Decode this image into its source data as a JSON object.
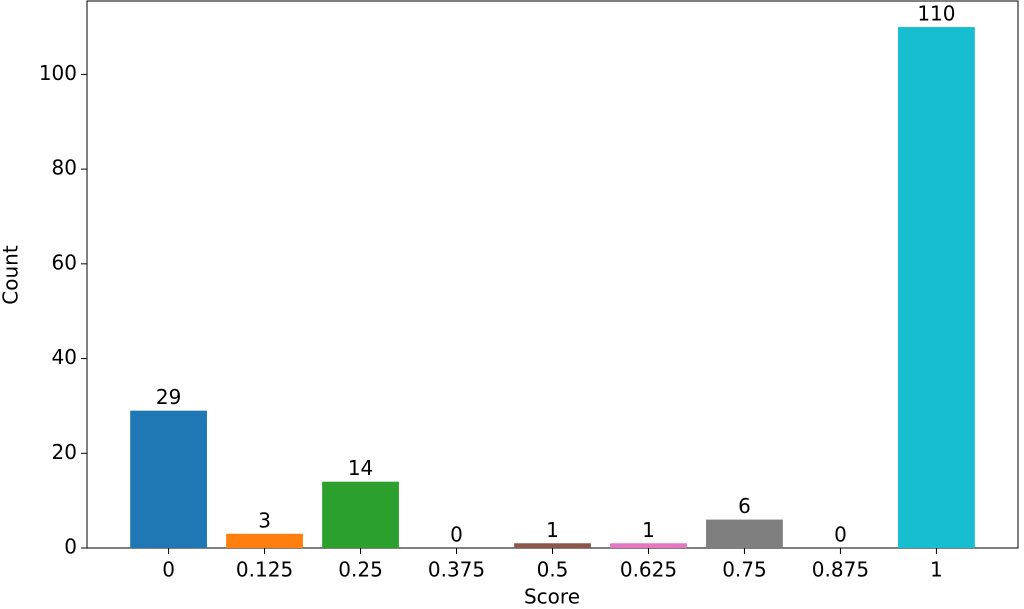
{
  "chart_data": {
    "type": "bar",
    "xlabel": "Score",
    "ylabel": "Count",
    "categories": [
      "0",
      "0.125",
      "0.25",
      "0.375",
      "0.5",
      "0.625",
      "0.75",
      "0.875",
      "1"
    ],
    "values": [
      29,
      3,
      14,
      0,
      1,
      1,
      6,
      0,
      110
    ],
    "colors": [
      "#1f77b4",
      "#ff7f0e",
      "#2ca02c",
      "#d62728",
      "#8c564b",
      "#e377c2",
      "#7f7f7f",
      "#bcbd22",
      "#17becf"
    ],
    "ylim": [
      0,
      115.5
    ],
    "yticks": [
      0,
      20,
      40,
      60,
      80,
      100
    ],
    "grid": false
  }
}
